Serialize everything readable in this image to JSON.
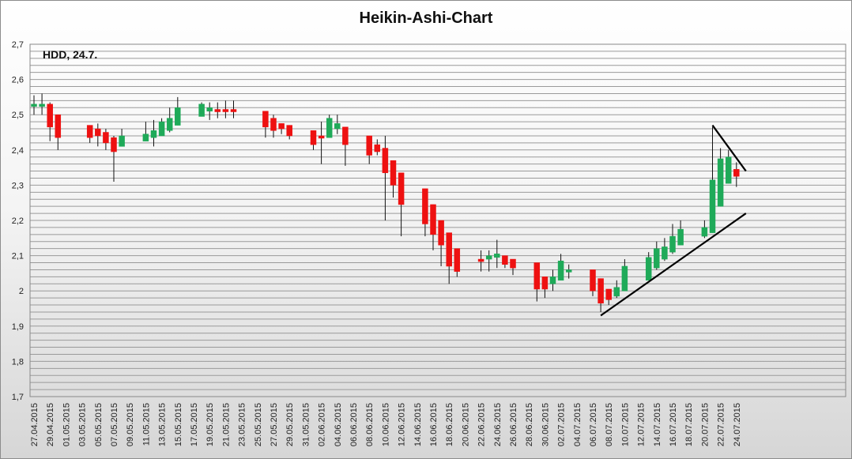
{
  "chart_data": {
    "type": "candlestick",
    "title": "Heikin-Ashi-Chart",
    "annotation": "HDD, 24.7.",
    "ylim": [
      1.7,
      2.7
    ],
    "y_ticks": [
      "1,7",
      "1,8",
      "1,9",
      "2",
      "2,1",
      "2,2",
      "2,3",
      "2,4",
      "2,5",
      "2,6",
      "2,7"
    ],
    "x_ticks": [
      "27.04.2015",
      "29.04.2015",
      "01.05.2015",
      "03.05.2015",
      "05.05.2015",
      "07.05.2015",
      "09.05.2015",
      "11.05.2015",
      "13.05.2015",
      "15.05.2015",
      "17.05.2015",
      "19.05.2015",
      "21.05.2015",
      "23.05.2015",
      "25.05.2015",
      "27.05.2015",
      "29.05.2015",
      "31.05.2015",
      "02.06.2015",
      "04.06.2015",
      "06.06.2015",
      "08.06.2015",
      "10.06.2015",
      "12.06.2015",
      "14.06.2015",
      "16.06.2015",
      "18.06.2015",
      "20.06.2015",
      "22.06.2015",
      "24.06.2015",
      "26.06.2015",
      "28.06.2015",
      "30.06.2015",
      "02.07.2015",
      "04.07.2015",
      "06.07.2015",
      "08.07.2015",
      "10.07.2015",
      "12.07.2015",
      "14.07.2015",
      "16.07.2015",
      "18.07.2015",
      "20.07.2015",
      "22.07.2015",
      "24.07.2015"
    ],
    "grid": true,
    "colors": {
      "up": "#1faa59",
      "down": "#ee1111",
      "trendline": "#000000"
    },
    "candles": [
      {
        "date": "27.04.2015",
        "open": 2.525,
        "close": 2.53,
        "high": 2.555,
        "low": 2.5
      },
      {
        "date": "28.04.2015",
        "open": 2.525,
        "close": 2.53,
        "high": 2.56,
        "low": 2.5
      },
      {
        "date": "29.04.2015",
        "open": 2.53,
        "close": 2.465,
        "high": 2.535,
        "low": 2.425
      },
      {
        "date": "30.04.2015",
        "open": 2.5,
        "close": 2.435,
        "high": 2.5,
        "low": 2.4
      },
      {
        "date": "04.05.2015",
        "open": 2.47,
        "close": 2.435,
        "high": 2.47,
        "low": 2.42
      },
      {
        "date": "05.05.2015",
        "open": 2.46,
        "close": 2.44,
        "high": 2.475,
        "low": 2.41
      },
      {
        "date": "06.05.2015",
        "open": 2.45,
        "close": 2.42,
        "high": 2.46,
        "low": 2.4
      },
      {
        "date": "07.05.2015",
        "open": 2.435,
        "close": 2.395,
        "high": 2.44,
        "low": 2.31
      },
      {
        "date": "08.05.2015",
        "open": 2.41,
        "close": 2.44,
        "high": 2.46,
        "low": 2.41
      },
      {
        "date": "11.05.2015",
        "open": 2.425,
        "close": 2.445,
        "high": 2.48,
        "low": 2.425
      },
      {
        "date": "12.05.2015",
        "open": 2.435,
        "close": 2.455,
        "high": 2.485,
        "low": 2.41
      },
      {
        "date": "13.05.2015",
        "open": 2.44,
        "close": 2.48,
        "high": 2.49,
        "low": 2.44
      },
      {
        "date": "14.05.2015",
        "open": 2.455,
        "close": 2.49,
        "high": 2.52,
        "low": 2.45
      },
      {
        "date": "15.05.2015",
        "open": 2.47,
        "close": 2.52,
        "high": 2.55,
        "low": 2.47
      },
      {
        "date": "18.05.2015",
        "open": 2.495,
        "close": 2.53,
        "high": 2.535,
        "low": 2.495
      },
      {
        "date": "19.05.2015",
        "open": 2.51,
        "close": 2.52,
        "high": 2.535,
        "low": 2.485
      },
      {
        "date": "20.05.2015",
        "open": 2.515,
        "close": 2.51,
        "high": 2.535,
        "low": 2.49
      },
      {
        "date": "21.05.2015",
        "open": 2.515,
        "close": 2.51,
        "high": 2.54,
        "low": 2.49
      },
      {
        "date": "22.05.2015",
        "open": 2.515,
        "close": 2.51,
        "high": 2.54,
        "low": 2.49
      },
      {
        "date": "26.05.2015",
        "open": 2.51,
        "close": 2.465,
        "high": 2.51,
        "low": 2.435
      },
      {
        "date": "27.05.2015",
        "open": 2.49,
        "close": 2.455,
        "high": 2.5,
        "low": 2.435
      },
      {
        "date": "28.05.2015",
        "open": 2.475,
        "close": 2.46,
        "high": 2.475,
        "low": 2.445
      },
      {
        "date": "29.05.2015",
        "open": 2.47,
        "close": 2.44,
        "high": 2.47,
        "low": 2.43
      },
      {
        "date": "01.06.2015",
        "open": 2.455,
        "close": 2.415,
        "high": 2.455,
        "low": 2.4
      },
      {
        "date": "02.06.2015",
        "open": 2.44,
        "close": 2.435,
        "high": 2.48,
        "low": 2.36
      },
      {
        "date": "03.06.2015",
        "open": 2.435,
        "close": 2.49,
        "high": 2.5,
        "low": 2.435
      },
      {
        "date": "04.06.2015",
        "open": 2.46,
        "close": 2.475,
        "high": 2.5,
        "low": 2.445
      },
      {
        "date": "05.06.2015",
        "open": 2.465,
        "close": 2.415,
        "high": 2.465,
        "low": 2.355
      },
      {
        "date": "08.06.2015",
        "open": 2.44,
        "close": 2.385,
        "high": 2.44,
        "low": 2.36
      },
      {
        "date": "09.06.2015",
        "open": 2.415,
        "close": 2.395,
        "high": 2.43,
        "low": 2.385
      },
      {
        "date": "10.06.2015",
        "open": 2.405,
        "close": 2.335,
        "high": 2.44,
        "low": 2.2
      },
      {
        "date": "11.06.2015",
        "open": 2.37,
        "close": 2.3,
        "high": 2.37,
        "low": 2.265
      },
      {
        "date": "12.06.2015",
        "open": 2.335,
        "close": 2.245,
        "high": 2.335,
        "low": 2.155
      },
      {
        "date": "15.06.2015",
        "open": 2.29,
        "close": 2.19,
        "high": 2.29,
        "low": 2.155
      },
      {
        "date": "16.06.2015",
        "open": 2.245,
        "close": 2.16,
        "high": 2.245,
        "low": 2.115
      },
      {
        "date": "17.06.2015",
        "open": 2.2,
        "close": 2.13,
        "high": 2.2,
        "low": 2.07
      },
      {
        "date": "18.06.2015",
        "open": 2.165,
        "close": 2.07,
        "high": 2.165,
        "low": 2.02
      },
      {
        "date": "19.06.2015",
        "open": 2.12,
        "close": 2.055,
        "high": 2.12,
        "low": 2.04
      },
      {
        "date": "22.06.2015",
        "open": 2.09,
        "close": 2.085,
        "high": 2.115,
        "low": 2.055
      },
      {
        "date": "23.06.2015",
        "open": 2.09,
        "close": 2.1,
        "high": 2.115,
        "low": 2.055
      },
      {
        "date": "24.06.2015",
        "open": 2.095,
        "close": 2.105,
        "high": 2.145,
        "low": 2.065
      },
      {
        "date": "25.06.2015",
        "open": 2.1,
        "close": 2.075,
        "high": 2.1,
        "low": 2.065
      },
      {
        "date": "26.06.2015",
        "open": 2.09,
        "close": 2.065,
        "high": 2.09,
        "low": 2.045
      },
      {
        "date": "29.06.2015",
        "open": 2.08,
        "close": 2.005,
        "high": 2.08,
        "low": 1.97
      },
      {
        "date": "30.06.2015",
        "open": 2.04,
        "close": 2.005,
        "high": 2.04,
        "low": 1.98
      },
      {
        "date": "01.07.2015",
        "open": 2.02,
        "close": 2.04,
        "high": 2.06,
        "low": 2.0
      },
      {
        "date": "02.07.2015",
        "open": 2.03,
        "close": 2.085,
        "high": 2.105,
        "low": 2.03
      },
      {
        "date": "03.07.2015",
        "open": 2.055,
        "close": 2.06,
        "high": 2.075,
        "low": 2.035
      },
      {
        "date": "06.07.2015",
        "open": 2.06,
        "close": 2.0,
        "high": 2.06,
        "low": 1.985
      },
      {
        "date": "07.07.2015",
        "open": 2.035,
        "close": 1.965,
        "high": 2.035,
        "low": 1.94
      },
      {
        "date": "08.07.2015",
        "open": 2.005,
        "close": 1.975,
        "high": 2.005,
        "low": 1.96
      },
      {
        "date": "09.07.2015",
        "open": 1.985,
        "close": 2.01,
        "high": 2.03,
        "low": 1.98
      },
      {
        "date": "10.07.2015",
        "open": 2.0,
        "close": 2.07,
        "high": 2.09,
        "low": 2.0
      },
      {
        "date": "13.07.2015",
        "open": 2.03,
        "close": 2.095,
        "high": 2.11,
        "low": 2.03
      },
      {
        "date": "14.07.2015",
        "open": 2.065,
        "close": 2.12,
        "high": 2.14,
        "low": 2.06
      },
      {
        "date": "15.07.2015",
        "open": 2.09,
        "close": 2.125,
        "high": 2.15,
        "low": 2.085
      },
      {
        "date": "16.07.2015",
        "open": 2.11,
        "close": 2.155,
        "high": 2.19,
        "low": 2.105
      },
      {
        "date": "17.07.2015",
        "open": 2.13,
        "close": 2.175,
        "high": 2.2,
        "low": 2.13
      },
      {
        "date": "20.07.2015",
        "open": 2.155,
        "close": 2.18,
        "high": 2.2,
        "low": 2.15
      },
      {
        "date": "21.07.2015",
        "open": 2.165,
        "close": 2.315,
        "high": 2.465,
        "low": 2.165
      },
      {
        "date": "22.07.2015",
        "open": 2.24,
        "close": 2.375,
        "high": 2.405,
        "low": 2.24
      },
      {
        "date": "23.07.2015",
        "open": 2.305,
        "close": 2.38,
        "high": 2.4,
        "low": 2.305
      },
      {
        "date": "24.07.2015",
        "open": 2.345,
        "close": 2.325,
        "high": 2.365,
        "low": 2.295
      }
    ],
    "trendlines": [
      {
        "x": [
          "07.07.2015",
          "24.07.2015"
        ],
        "y": [
          1.93,
          2.22
        ]
      },
      {
        "x": [
          "21.07.2015",
          "24.07.2015"
        ],
        "y": [
          2.47,
          2.34
        ]
      }
    ]
  }
}
